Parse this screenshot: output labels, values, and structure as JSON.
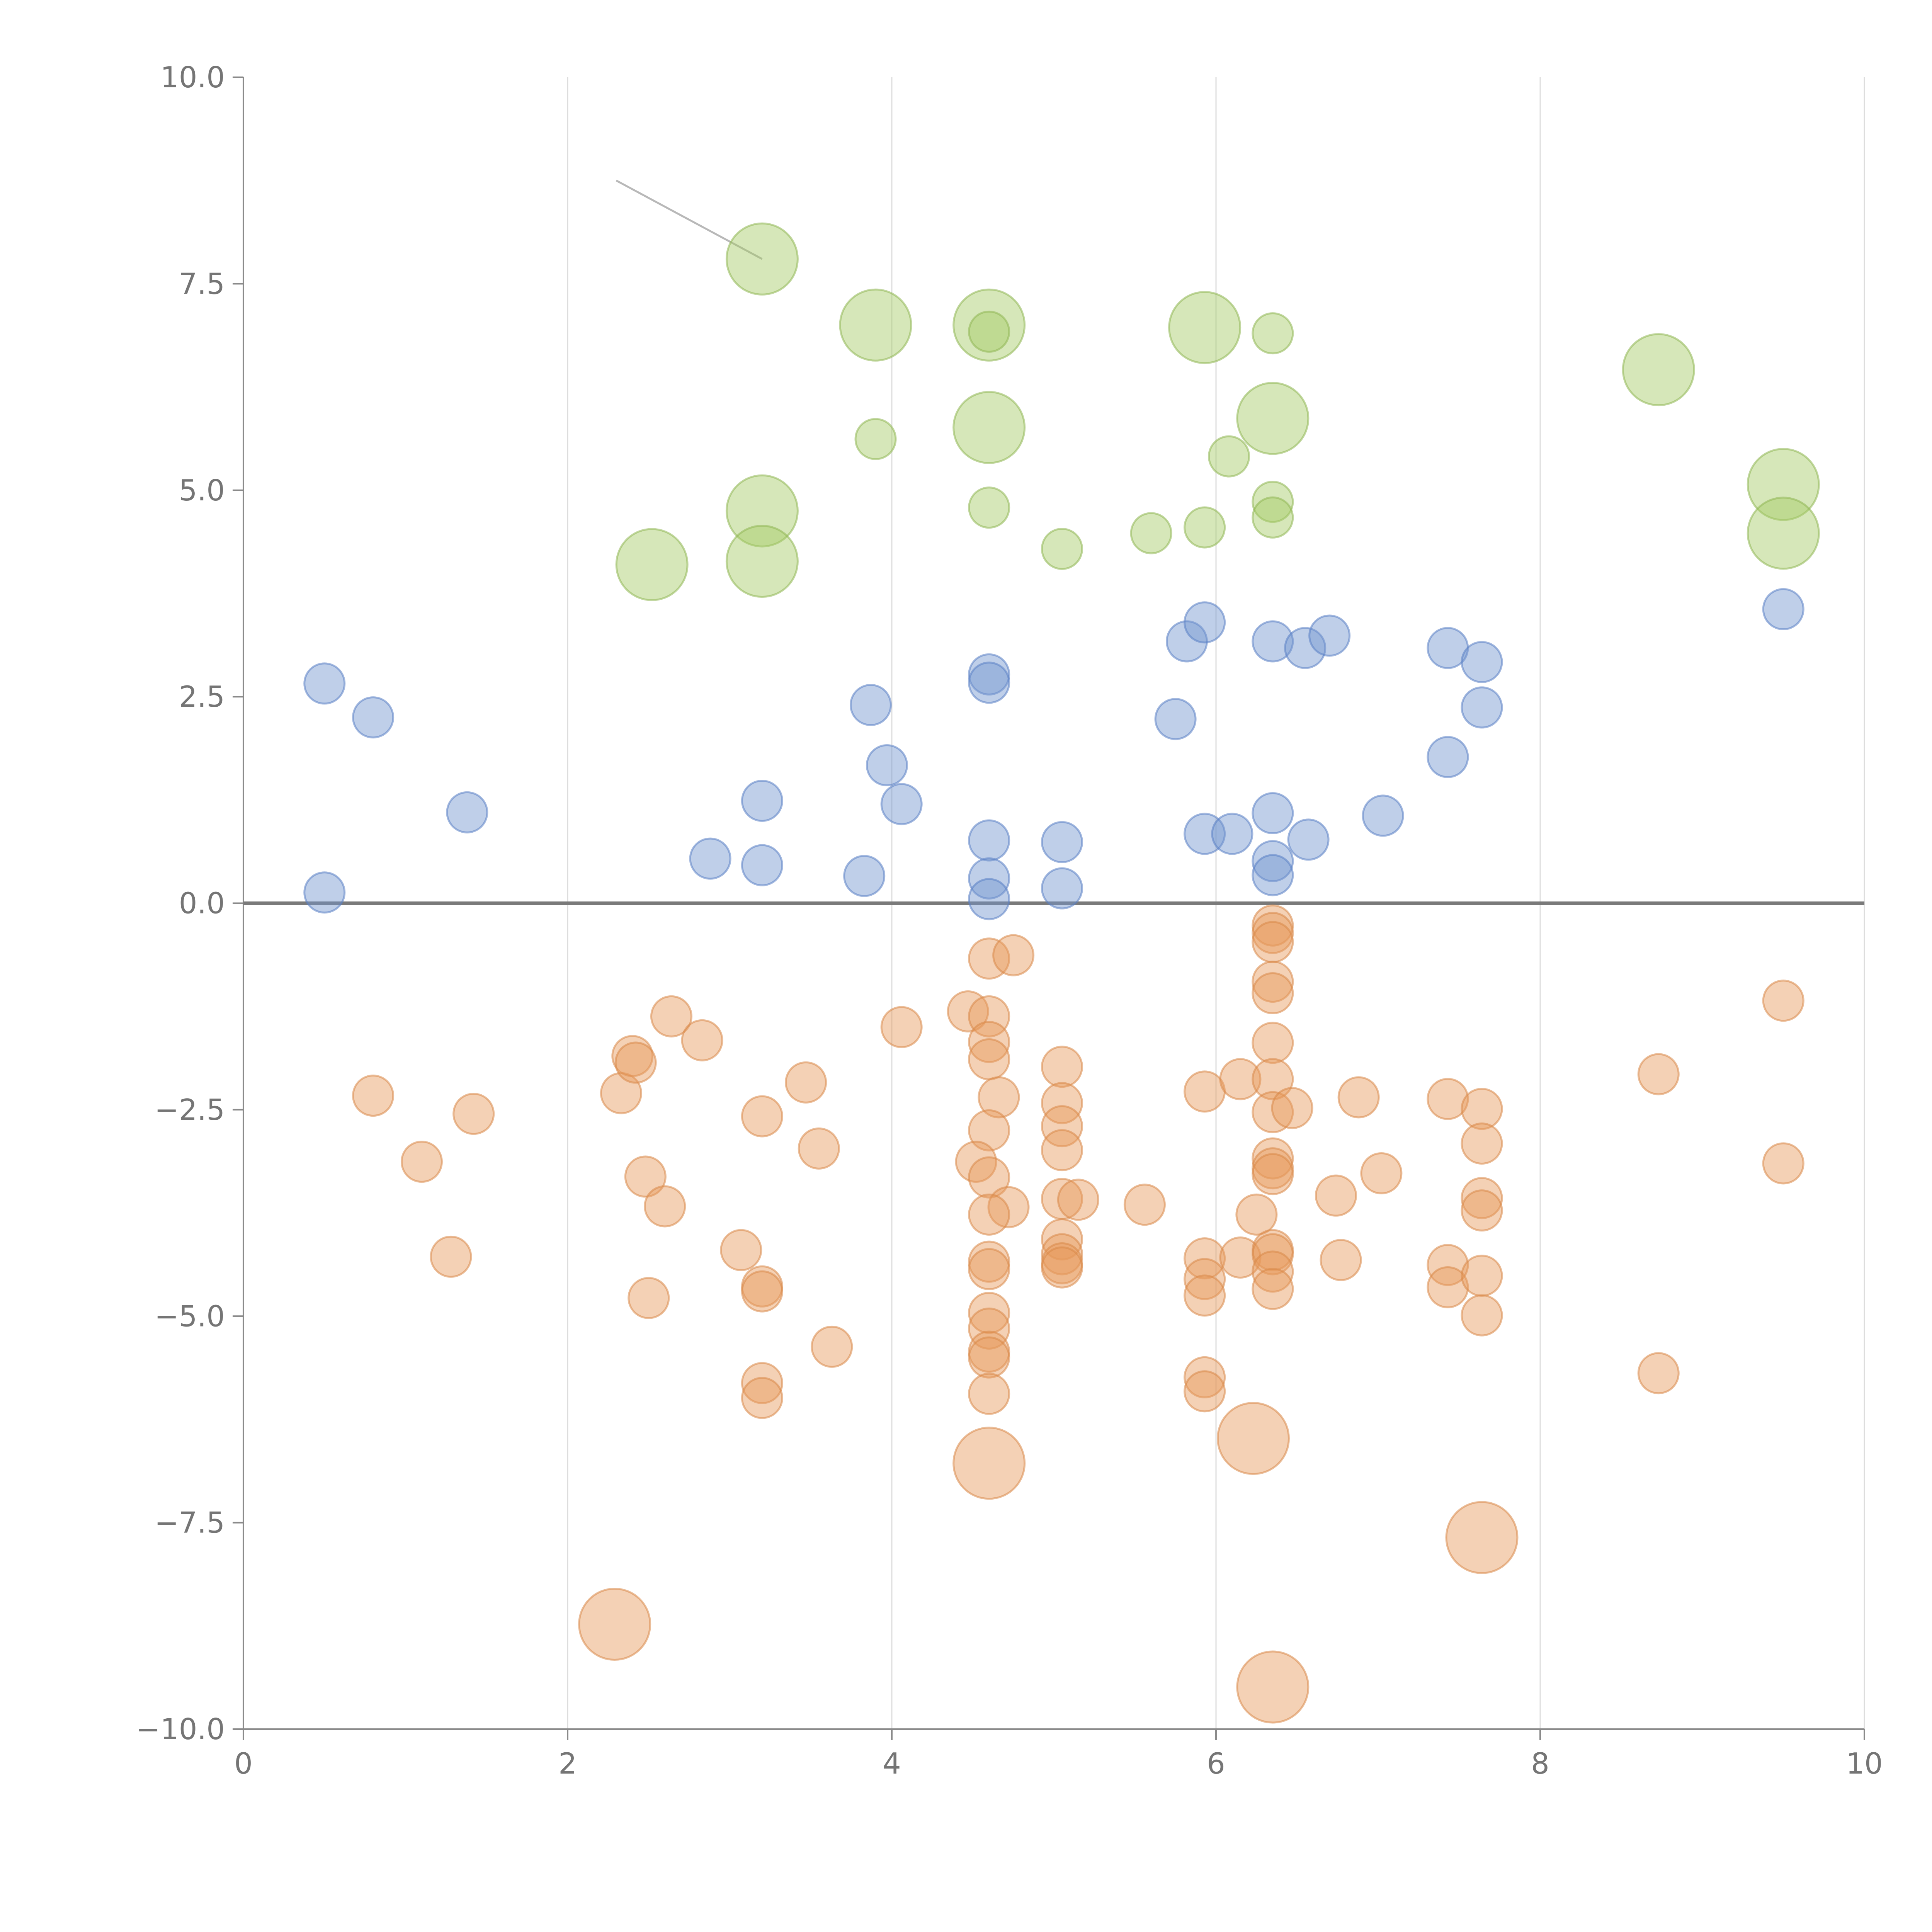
{
  "chart_data": {
    "type": "scatter",
    "title": "",
    "xlabel": "",
    "ylabel": "",
    "xlim": [
      0,
      10
    ],
    "ylim": [
      -10,
      10
    ],
    "grid": "vertical",
    "x_ticks": [
      0,
      2,
      4,
      6,
      8,
      10
    ],
    "x_tick_labels": [
      "0",
      "2",
      "4",
      "6",
      "8",
      "10"
    ],
    "y_ticks": [
      10,
      7.5,
      5,
      2.5,
      0,
      -2.5,
      -5,
      -7.5,
      -10
    ],
    "y_tick_labels": [
      "10.0",
      "7.5",
      "5.0",
      "2.5",
      "0.0",
      "−2.5",
      "−5.0",
      "−7.5",
      "−10.0"
    ],
    "zero_line": 0,
    "series": [
      {
        "name": "green",
        "fill": "#a5c964",
        "stroke": "#8fb654",
        "fill_opacity": 0.45,
        "points": [
          [
            3.2,
            7.8,
            3
          ],
          [
            3.9,
            7.0,
            3
          ],
          [
            4.6,
            7.0,
            3
          ],
          [
            4.6,
            6.92,
            1
          ],
          [
            5.93,
            6.97,
            3
          ],
          [
            6.35,
            6.9,
            1
          ],
          [
            8.73,
            6.46,
            3
          ],
          [
            3.9,
            5.62,
            1
          ],
          [
            4.6,
            5.76,
            3
          ],
          [
            6.35,
            5.87,
            3
          ],
          [
            6.08,
            5.41,
            1
          ],
          [
            9.5,
            5.07,
            3
          ],
          [
            9.5,
            4.48,
            3
          ],
          [
            3.2,
            4.75,
            3
          ],
          [
            3.2,
            4.14,
            3
          ],
          [
            2.52,
            4.1,
            3
          ],
          [
            4.6,
            4.79,
            1
          ],
          [
            5.05,
            4.29,
            1
          ],
          [
            5.6,
            4.48,
            1
          ],
          [
            5.93,
            4.55,
            1
          ],
          [
            6.35,
            4.86,
            1
          ],
          [
            6.35,
            4.67,
            1
          ]
        ]
      },
      {
        "name": "blue",
        "fill": "#7094cf",
        "stroke": "#5a80c4",
        "fill_opacity": 0.45,
        "points": [
          [
            0.5,
            2.66,
            1
          ],
          [
            0.8,
            2.25,
            1
          ],
          [
            1.38,
            1.1,
            1
          ],
          [
            0.5,
            0.13,
            1
          ],
          [
            2.88,
            0.54,
            1
          ],
          [
            3.2,
            1.24,
            1
          ],
          [
            3.2,
            0.46,
            1
          ],
          [
            3.83,
            0.33,
            1
          ],
          [
            3.87,
            2.4,
            1
          ],
          [
            3.97,
            1.67,
            1
          ],
          [
            4.06,
            1.2,
            1
          ],
          [
            4.6,
            2.77,
            1
          ],
          [
            4.6,
            2.67,
            1
          ],
          [
            4.6,
            0.76,
            1
          ],
          [
            4.6,
            0.3,
            1
          ],
          [
            4.6,
            0.05,
            1
          ],
          [
            5.05,
            0.74,
            1
          ],
          [
            5.05,
            0.18,
            1
          ],
          [
            5.75,
            2.23,
            1
          ],
          [
            5.82,
            3.17,
            1
          ],
          [
            5.93,
            3.4,
            1
          ],
          [
            5.93,
            0.84,
            1
          ],
          [
            6.1,
            0.84,
            1
          ],
          [
            6.35,
            3.17,
            1
          ],
          [
            6.55,
            3.09,
            1
          ],
          [
            6.7,
            3.24,
            1
          ],
          [
            6.35,
            1.09,
            1
          ],
          [
            6.35,
            0.51,
            1
          ],
          [
            6.35,
            0.34,
            1
          ],
          [
            6.57,
            0.77,
            1
          ],
          [
            7.03,
            1.06,
            1
          ],
          [
            7.43,
            3.09,
            1
          ],
          [
            7.64,
            2.92,
            1
          ],
          [
            7.64,
            2.37,
            1
          ],
          [
            7.43,
            1.77,
            1
          ],
          [
            9.5,
            3.56,
            1
          ]
        ]
      },
      {
        "name": "orange",
        "fill": "#e69a5c",
        "stroke": "#d88848",
        "fill_opacity": 0.45,
        "points": [
          [
            0.8,
            -2.33,
            1
          ],
          [
            1.1,
            -3.13,
            1
          ],
          [
            1.42,
            -2.55,
            1
          ],
          [
            1.28,
            -4.28,
            1
          ],
          [
            2.33,
            -2.3,
            1
          ],
          [
            2.4,
            -1.85,
            1
          ],
          [
            2.42,
            -1.93,
            1
          ],
          [
            2.64,
            -1.37,
            1
          ],
          [
            2.83,
            -1.66,
            1
          ],
          [
            2.48,
            -3.31,
            1
          ],
          [
            2.6,
            -3.67,
            1
          ],
          [
            2.5,
            -4.78,
            1
          ],
          [
            3.07,
            -4.2,
            1
          ],
          [
            3.2,
            -2.58,
            1
          ],
          [
            3.2,
            -4.64,
            1
          ],
          [
            3.2,
            -4.7,
            1
          ],
          [
            3.2,
            -5.81,
            1
          ],
          [
            3.2,
            -5.99,
            1
          ],
          [
            3.47,
            -2.17,
            1
          ],
          [
            3.55,
            -2.97,
            1
          ],
          [
            3.63,
            -5.37,
            1
          ],
          [
            2.29,
            -8.73,
            3
          ],
          [
            4.06,
            -1.5,
            1
          ],
          [
            4.47,
            -1.31,
            1
          ],
          [
            4.6,
            -0.67,
            1
          ],
          [
            4.75,
            -0.63,
            1
          ],
          [
            4.6,
            -1.37,
            1
          ],
          [
            4.6,
            -1.68,
            1
          ],
          [
            4.6,
            -1.89,
            1
          ],
          [
            4.66,
            -2.35,
            1
          ],
          [
            4.6,
            -2.75,
            1
          ],
          [
            4.52,
            -3.13,
            1
          ],
          [
            4.6,
            -3.32,
            1
          ],
          [
            4.72,
            -3.68,
            1
          ],
          [
            4.6,
            -3.77,
            1
          ],
          [
            4.6,
            -4.34,
            1
          ],
          [
            4.6,
            -4.43,
            1
          ],
          [
            4.6,
            -4.96,
            1
          ],
          [
            4.6,
            -5.15,
            1
          ],
          [
            4.6,
            -5.43,
            1
          ],
          [
            4.6,
            -5.5,
            1
          ],
          [
            4.6,
            -5.94,
            1
          ],
          [
            4.6,
            -6.78,
            3
          ],
          [
            5.05,
            -1.98,
            1
          ],
          [
            5.05,
            -2.42,
            1
          ],
          [
            5.05,
            -2.7,
            1
          ],
          [
            5.05,
            -2.99,
            1
          ],
          [
            5.05,
            -3.58,
            1
          ],
          [
            5.15,
            -3.59,
            1
          ],
          [
            5.05,
            -4.07,
            1
          ],
          [
            5.05,
            -4.25,
            1
          ],
          [
            5.05,
            -4.36,
            1
          ],
          [
            5.05,
            -4.41,
            1
          ],
          [
            5.56,
            -3.65,
            1
          ],
          [
            5.93,
            -2.28,
            1
          ],
          [
            6.15,
            -2.13,
            1
          ],
          [
            5.93,
            -4.3,
            1
          ],
          [
            5.93,
            -4.55,
            1
          ],
          [
            5.93,
            -4.75,
            1
          ],
          [
            6.15,
            -4.29,
            1
          ],
          [
            6.25,
            -3.77,
            1
          ],
          [
            5.93,
            -5.74,
            1
          ],
          [
            5.93,
            -5.91,
            1
          ],
          [
            6.23,
            -6.48,
            3
          ],
          [
            6.35,
            -0.27,
            1
          ],
          [
            6.35,
            -0.36,
            1
          ],
          [
            6.35,
            -0.47,
            1
          ],
          [
            6.35,
            -0.95,
            1
          ],
          [
            6.35,
            -1.09,
            1
          ],
          [
            6.35,
            -1.69,
            1
          ],
          [
            6.35,
            -2.13,
            1
          ],
          [
            6.35,
            -2.53,
            1
          ],
          [
            6.47,
            -2.48,
            1
          ],
          [
            6.35,
            -3.09,
            1
          ],
          [
            6.35,
            -3.21,
            1
          ],
          [
            6.35,
            -3.28,
            1
          ],
          [
            6.35,
            -4.2,
            1
          ],
          [
            6.35,
            -4.25,
            1
          ],
          [
            6.35,
            -4.46,
            1
          ],
          [
            6.35,
            -4.67,
            1
          ],
          [
            6.35,
            -9.49,
            3
          ],
          [
            6.74,
            -3.54,
            1
          ],
          [
            6.77,
            -4.32,
            1
          ],
          [
            6.88,
            -2.35,
            1
          ],
          [
            7.02,
            -3.27,
            1
          ],
          [
            7.43,
            -2.37,
            1
          ],
          [
            7.43,
            -4.38,
            1
          ],
          [
            7.43,
            -4.65,
            1
          ],
          [
            7.64,
            -2.49,
            1
          ],
          [
            7.64,
            -2.91,
            1
          ],
          [
            7.64,
            -3.57,
            1
          ],
          [
            7.64,
            -3.72,
            1
          ],
          [
            7.64,
            -4.51,
            1
          ],
          [
            7.64,
            -4.99,
            1
          ],
          [
            7.64,
            -7.68,
            3
          ],
          [
            8.73,
            -2.07,
            1
          ],
          [
            8.73,
            -5.69,
            1
          ],
          [
            9.5,
            -1.18,
            1
          ],
          [
            9.5,
            -3.15,
            1
          ]
        ]
      }
    ],
    "point_format": "[x, y, size]",
    "annotations": [
      {
        "type": "leader-line",
        "color": "#b8b8b8",
        "from": [
          2.3,
          8.75
        ],
        "to": [
          3.2,
          7.8
        ]
      }
    ]
  }
}
